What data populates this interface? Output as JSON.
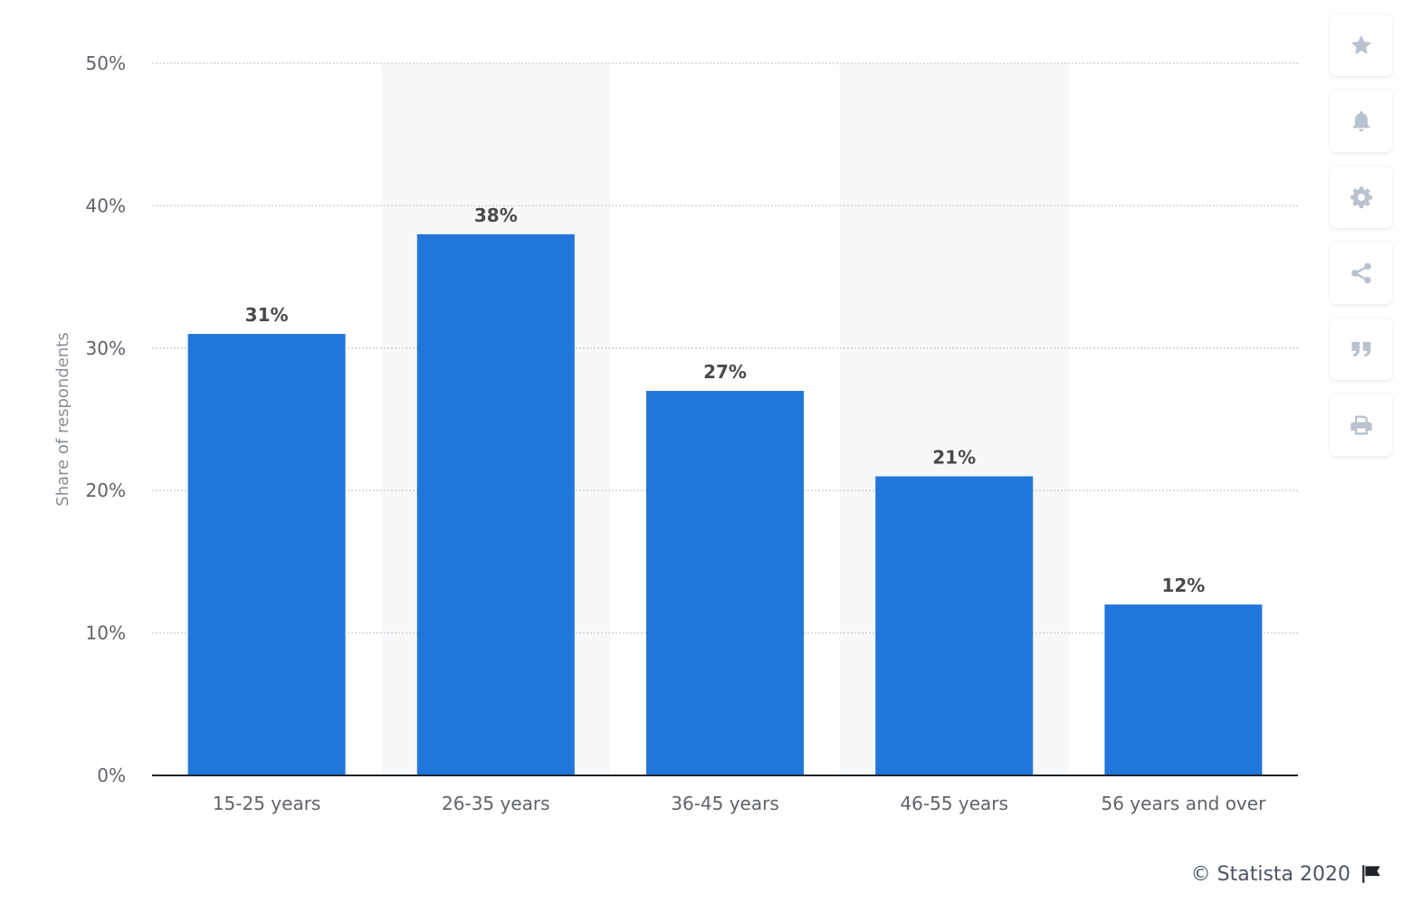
{
  "colors": {
    "bar": "#2176db",
    "grid": "#c9ccd1",
    "band": "#f7f8f9",
    "axis": "#1f2328",
    "tick_text": "#5f6368",
    "label_text": "#4a4a4a",
    "icon": "#b9c2cf"
  },
  "chart_data": {
    "type": "bar",
    "title": "",
    "xlabel": "",
    "ylabel": "Share of respondents",
    "categories": [
      "15-25 years",
      "26-35 years",
      "36-45 years",
      "46-55 years",
      "56 years and over"
    ],
    "series": [
      {
        "values": [
          31,
          38,
          27,
          21,
          12
        ]
      }
    ],
    "data_labels": [
      "31%",
      "38%",
      "27%",
      "21%",
      "12%"
    ],
    "ylim": [
      0,
      50
    ],
    "yticks": [
      0,
      10,
      20,
      30,
      40,
      50
    ],
    "ytick_labels": [
      "0%",
      "10%",
      "20%",
      "30%",
      "40%",
      "50%"
    ],
    "grid": true,
    "alternating_bands": true
  },
  "toolbar": {
    "buttons": [
      {
        "name": "favorite-button",
        "icon": "star-icon"
      },
      {
        "name": "notification-button",
        "icon": "bell-icon"
      },
      {
        "name": "settings-button",
        "icon": "gear-icon"
      },
      {
        "name": "share-button",
        "icon": "share-icon"
      },
      {
        "name": "cite-button",
        "icon": "quote-icon"
      },
      {
        "name": "print-button",
        "icon": "print-icon"
      }
    ]
  },
  "footer": {
    "credit": "© Statista 2020",
    "flag_icon": "flag-icon"
  }
}
